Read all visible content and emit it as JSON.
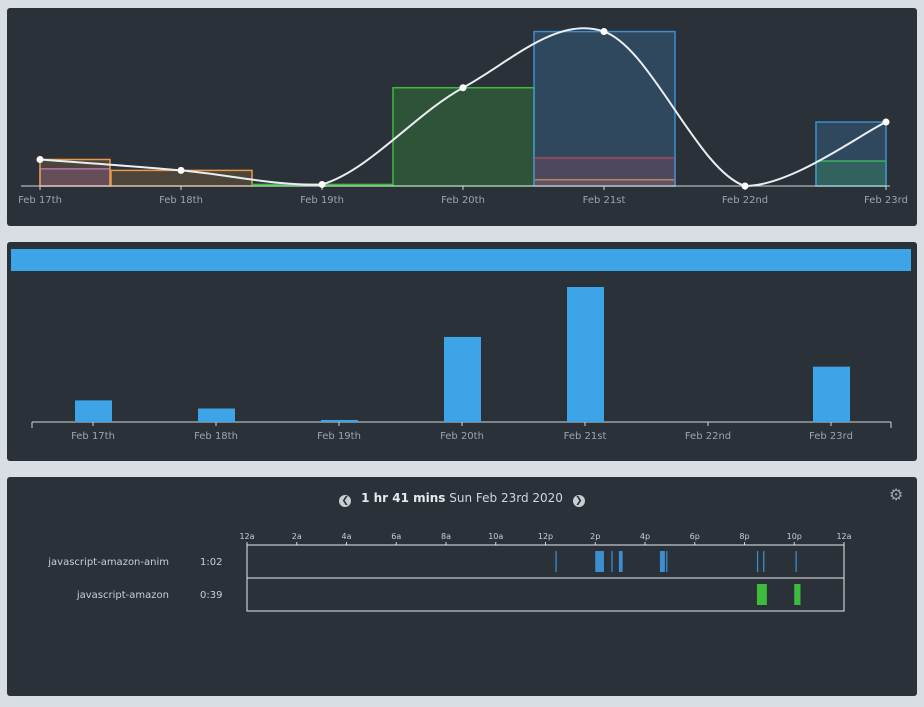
{
  "colors": {
    "purple": "#a569c9",
    "orange": "#e8994a",
    "green": "#3dbb3d",
    "blue": "#3b8fd1",
    "red": "#cc3333",
    "line": "#e8eef2",
    "bar": "#3ea4e8"
  },
  "chart_data": [
    {
      "type": "bar",
      "subtype": "stacked-overlay-with-smooth-line",
      "categories": [
        "Feb 17th",
        "Feb 18th",
        "Feb 19th",
        "Feb 20th",
        "Feb 21st",
        "Feb 22nd",
        "Feb 23rd"
      ],
      "series": [
        {
          "color": "purple",
          "values": [
            0.11,
            0,
            0,
            0,
            0,
            0,
            0
          ]
        },
        {
          "color": "orange",
          "values": [
            0.17,
            0.1,
            0,
            0,
            0.04,
            0,
            0
          ]
        },
        {
          "color": "green",
          "values": [
            0,
            0,
            0.01,
            0.63,
            0,
            0,
            0.16
          ]
        },
        {
          "color": "red",
          "values": [
            0,
            0,
            0,
            0,
            0.18,
            0,
            0
          ]
        },
        {
          "color": "blue",
          "values": [
            0,
            0,
            0,
            0,
            0.99,
            0,
            0.41
          ]
        }
      ],
      "line_points": [
        0.17,
        0.1,
        0.01,
        0.63,
        0.99,
        0,
        0.41
      ],
      "ylim": [
        0,
        1
      ]
    },
    {
      "type": "bar",
      "categories": [
        "Feb 17th",
        "Feb 18th",
        "Feb 19th",
        "Feb 20th",
        "Feb 21st",
        "Feb 22nd",
        "Feb 23rd"
      ],
      "values": [
        0.16,
        0.1,
        0.015,
        0.63,
        1.0,
        0,
        0.41
      ],
      "ylim": [
        0,
        1
      ]
    }
  ],
  "timeline": {
    "duration": "1 hr 41 mins",
    "date": "Sun Feb 23rd 2020",
    "hour_labels": [
      "12a",
      "2a",
      "4a",
      "6a",
      "8a",
      "10a",
      "12p",
      "2p",
      "4p",
      "6p",
      "8p",
      "10p",
      "12a"
    ],
    "rows": [
      {
        "label": "javascript-amazon-anim",
        "time": "1:02",
        "color": "blue",
        "segments": [
          [
            12.4,
            12.45
          ],
          [
            14.0,
            14.35
          ],
          [
            14.65,
            14.7
          ],
          [
            14.95,
            15.1
          ],
          [
            16.6,
            16.8
          ],
          [
            16.85,
            16.9
          ],
          [
            20.5,
            20.55
          ],
          [
            20.75,
            20.8
          ],
          [
            22.05,
            22.1
          ]
        ]
      },
      {
        "label": "javascript-amazon",
        "time": "0:39",
        "color": "green",
        "segments": [
          [
            20.5,
            20.9
          ],
          [
            22.0,
            22.25
          ]
        ]
      }
    ]
  }
}
